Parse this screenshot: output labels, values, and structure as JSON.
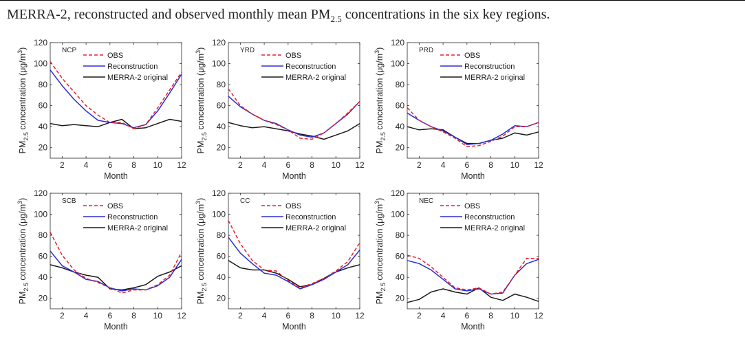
{
  "caption": {
    "prefix": "MERRA-2, reconstructed and observed monthly mean PM",
    "sub": "2.5",
    "suffix": " concentrations in the six key regions."
  },
  "colors": {
    "obs": "#e8202a",
    "reconstruction": "#2b2bd9",
    "merra2": "#1a1a1a"
  },
  "chart_data": [
    {
      "type": "line",
      "title": "NCP",
      "xlabel": "Month",
      "ylabel_main": "PM",
      "ylabel_sub": "2.5",
      "ylabel_rest": " concentration (μg/m",
      "ylabel_sup": "3",
      "ylabel_end": ")",
      "xlim": [
        1,
        12
      ],
      "ylim": [
        10,
        120
      ],
      "xticks": [
        2,
        4,
        6,
        8,
        10,
        12
      ],
      "yticks": [
        20,
        40,
        60,
        80,
        100,
        120
      ],
      "legend": "top-left",
      "x": [
        1,
        2,
        3,
        4,
        5,
        6,
        7,
        8,
        9,
        10,
        11,
        12
      ],
      "series": [
        {
          "name": "OBS",
          "style": "dashed",
          "values": [
            102,
            86,
            73,
            60,
            51,
            44,
            44,
            38,
            42,
            58,
            75,
            92
          ]
        },
        {
          "name": "Reconstruction",
          "style": "solid",
          "values": [
            94,
            79,
            66,
            55,
            46,
            44,
            43,
            39,
            42,
            55,
            72,
            90
          ]
        },
        {
          "name": "MERRA-2 original",
          "style": "solid",
          "values": [
            43,
            41,
            42,
            41,
            40,
            44,
            47,
            38,
            39,
            43,
            47,
            45
          ]
        }
      ]
    },
    {
      "type": "line",
      "title": "YRD",
      "xlabel": "Month",
      "ylabel_main": "PM",
      "ylabel_sub": "2.5",
      "ylabel_rest": " concentration (μg/m",
      "ylabel_sup": "3",
      "ylabel_end": ")",
      "xlim": [
        1,
        12
      ],
      "ylim": [
        10,
        120
      ],
      "xticks": [
        2,
        4,
        6,
        8,
        10,
        12
      ],
      "yticks": [
        20,
        40,
        60,
        80,
        100,
        120
      ],
      "legend": "top-left",
      "x": [
        1,
        2,
        3,
        4,
        5,
        6,
        7,
        8,
        9,
        10,
        11,
        12
      ],
      "series": [
        {
          "name": "OBS",
          "style": "dashed",
          "values": [
            76,
            60,
            52,
            46,
            42,
            37,
            29,
            28,
            34,
            43,
            53,
            64
          ]
        },
        {
          "name": "Reconstruction",
          "style": "solid",
          "values": [
            69,
            59,
            52,
            46,
            43,
            37,
            32,
            30,
            34,
            43,
            52,
            64
          ]
        },
        {
          "name": "MERRA-2 original",
          "style": "solid",
          "values": [
            44,
            41,
            39,
            40,
            38,
            36,
            33,
            31,
            28,
            32,
            36,
            43
          ]
        }
      ]
    },
    {
      "type": "line",
      "title": "PRD",
      "xlabel": "Month",
      "ylabel_main": "PM",
      "ylabel_sub": "2.5",
      "ylabel_rest": " concentration (μg/m",
      "ylabel_sup": "3",
      "ylabel_end": ")",
      "xlim": [
        1,
        12
      ],
      "ylim": [
        10,
        120
      ],
      "xticks": [
        2,
        4,
        6,
        8,
        10,
        12
      ],
      "yticks": [
        20,
        40,
        60,
        80,
        100,
        120
      ],
      "legend": "top-left",
      "x": [
        1,
        2,
        3,
        4,
        5,
        6,
        7,
        8,
        9,
        10,
        11,
        12
      ],
      "series": [
        {
          "name": "OBS",
          "style": "dashed",
          "values": [
            58,
            46,
            40,
            35,
            29,
            21,
            22,
            26,
            31,
            40,
            40,
            44
          ]
        },
        {
          "name": "Reconstruction",
          "style": "solid",
          "values": [
            53,
            46,
            40,
            36,
            30,
            23,
            24,
            27,
            33,
            41,
            40,
            44
          ]
        },
        {
          "name": "MERRA-2 original",
          "style": "solid",
          "values": [
            40,
            37,
            38,
            37,
            30,
            24,
            24,
            27,
            29,
            34,
            32,
            35
          ]
        }
      ]
    },
    {
      "type": "line",
      "title": "SCB",
      "xlabel": "Month",
      "ylabel_main": "PM",
      "ylabel_sub": "2.5",
      "ylabel_rest": " concentration (μg/m",
      "ylabel_sup": "3",
      "ylabel_end": ")",
      "xlim": [
        1,
        12
      ],
      "ylim": [
        10,
        120
      ],
      "xticks": [
        2,
        4,
        6,
        8,
        10,
        12
      ],
      "yticks": [
        20,
        40,
        60,
        80,
        100,
        120
      ],
      "legend": "top-left",
      "x": [
        1,
        2,
        3,
        4,
        5,
        6,
        7,
        8,
        9,
        10,
        11,
        12
      ],
      "series": [
        {
          "name": "OBS",
          "style": "dashed",
          "values": [
            83,
            61,
            47,
            39,
            35,
            30,
            25,
            28,
            28,
            33,
            42,
            64
          ]
        },
        {
          "name": "Reconstruction",
          "style": "solid",
          "values": [
            65,
            51,
            45,
            38,
            36,
            30,
            27,
            29,
            28,
            32,
            40,
            57
          ]
        },
        {
          "name": "MERRA-2 original",
          "style": "solid",
          "values": [
            52,
            49,
            45,
            42,
            40,
            29,
            28,
            30,
            33,
            41,
            45,
            51
          ]
        }
      ]
    },
    {
      "type": "line",
      "title": "CC",
      "xlabel": "Month",
      "ylabel_main": "PM",
      "ylabel_sub": "2.5",
      "ylabel_rest": " concentration (μg/m",
      "ylabel_sup": "3",
      "ylabel_end": ")",
      "xlim": [
        1,
        12
      ],
      "ylim": [
        10,
        120
      ],
      "xticks": [
        2,
        4,
        6,
        8,
        10,
        12
      ],
      "yticks": [
        20,
        40,
        60,
        80,
        100,
        120
      ],
      "legend": "top-left",
      "x": [
        1,
        2,
        3,
        4,
        5,
        6,
        7,
        8,
        9,
        10,
        11,
        12
      ],
      "series": [
        {
          "name": "OBS",
          "style": "dashed",
          "values": [
            94,
            72,
            56,
            47,
            46,
            37,
            30,
            34,
            39,
            46,
            55,
            73
          ]
        },
        {
          "name": "Reconstruction",
          "style": "solid",
          "values": [
            78,
            63,
            53,
            44,
            42,
            36,
            29,
            33,
            38,
            45,
            52,
            66
          ]
        },
        {
          "name": "MERRA-2 original",
          "style": "solid",
          "values": [
            56,
            49,
            47,
            47,
            44,
            38,
            31,
            33,
            39,
            45,
            49,
            52
          ]
        }
      ]
    },
    {
      "type": "line",
      "title": "NEC",
      "xlabel": "Month",
      "ylabel_main": "PM",
      "ylabel_sub": "2.5",
      "ylabel_rest": " concentration (μg/m",
      "ylabel_sup": "3",
      "ylabel_end": ")",
      "xlim": [
        1,
        12
      ],
      "ylim": [
        10,
        120
      ],
      "xticks": [
        2,
        4,
        6,
        8,
        10,
        12
      ],
      "yticks": [
        20,
        40,
        60,
        80,
        100,
        120
      ],
      "legend": "top-left",
      "x": [
        1,
        2,
        3,
        4,
        5,
        6,
        7,
        8,
        9,
        10,
        11,
        12
      ],
      "series": [
        {
          "name": "OBS",
          "style": "dashed",
          "values": [
            61,
            58,
            50,
            40,
            30,
            28,
            30,
            24,
            26,
            42,
            58,
            58
          ]
        },
        {
          "name": "Reconstruction",
          "style": "solid",
          "values": [
            56,
            53,
            47,
            38,
            29,
            27,
            29,
            24,
            25,
            42,
            53,
            57
          ]
        },
        {
          "name": "MERRA-2 original",
          "style": "solid",
          "values": [
            16,
            19,
            26,
            29,
            26,
            24,
            30,
            21,
            18,
            24,
            21,
            17
          ]
        }
      ]
    }
  ]
}
